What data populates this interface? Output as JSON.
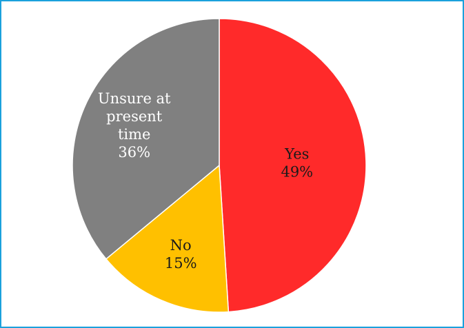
{
  "chart_data": {
    "type": "pie",
    "title": "",
    "slices": [
      {
        "label_lines": [
          "Yes",
          "49%"
        ],
        "value": 49,
        "color": "#ff2a2a",
        "text_color": "#1a1a1a"
      },
      {
        "label_lines": [
          "No",
          "15%"
        ],
        "value": 15,
        "color": "#ffc000",
        "text_color": "#1a1a1a"
      },
      {
        "label_lines": [
          "Unsure at",
          "present",
          "time",
          "36%"
        ],
        "value": 36,
        "color": "#808080",
        "text_color": "#ffffff"
      }
    ],
    "legend": "none",
    "start_angle": "12 o'clock",
    "direction": "clockwise"
  },
  "colors": {
    "frame_border": "#1ba1dc",
    "slice_separator": "#ffffff"
  }
}
